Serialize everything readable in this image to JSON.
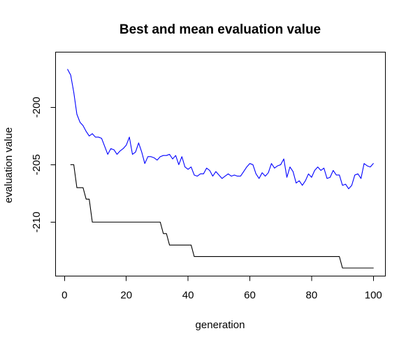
{
  "chart_data": {
    "type": "line",
    "title": "Best and mean evaluation value",
    "xlabel": "generation",
    "ylabel": "evaluation value",
    "xlim": [
      -2.9,
      103.9
    ],
    "ylim": [
      -214.7,
      -195.2
    ],
    "x_ticks": [
      0,
      20,
      40,
      60,
      80,
      100
    ],
    "y_ticks": [
      -200,
      -205,
      -210
    ],
    "grid": false,
    "legend": "none",
    "series": [
      {
        "color": "#0000ff",
        "x": [
          1,
          2,
          3,
          4,
          5,
          6,
          7,
          8,
          9,
          10,
          11,
          12,
          13,
          14,
          15,
          16,
          17,
          18,
          19,
          20,
          21,
          22,
          23,
          24,
          25,
          26,
          27,
          28,
          29,
          30,
          31,
          32,
          33,
          34,
          35,
          36,
          37,
          38,
          39,
          40,
          41,
          42,
          43,
          44,
          45,
          46,
          47,
          48,
          49,
          50,
          51,
          52,
          53,
          54,
          55,
          56,
          57,
          58,
          59,
          60,
          61,
          62,
          63,
          64,
          65,
          66,
          67,
          68,
          69,
          70,
          71,
          72,
          73,
          74,
          75,
          76,
          77,
          78,
          79,
          80,
          81,
          82,
          83,
          84,
          85,
          86,
          87,
          88,
          89,
          90,
          91,
          92,
          93,
          94,
          95,
          96,
          97,
          98,
          99,
          100
        ],
        "values": [
          -196.7,
          -197.2,
          -198.7,
          -200.6,
          -201.3,
          -201.6,
          -202.1,
          -202.5,
          -202.3,
          -202.6,
          -202.6,
          -202.7,
          -203.4,
          -204.1,
          -203.6,
          -203.7,
          -204.1,
          -203.8,
          -203.6,
          -203.3,
          -202.6,
          -204.1,
          -203.9,
          -203.1,
          -203.9,
          -204.9,
          -204.3,
          -204.3,
          -204.4,
          -204.6,
          -204.3,
          -204.2,
          -204.2,
          -204.1,
          -204.5,
          -204.2,
          -205.0,
          -204.3,
          -205.2,
          -205.4,
          -205.2,
          -205.9,
          -206.0,
          -205.8,
          -205.8,
          -205.3,
          -205.5,
          -206.0,
          -205.6,
          -205.9,
          -206.2,
          -206.0,
          -205.8,
          -206.0,
          -205.9,
          -206.0,
          -206.0,
          -205.6,
          -205.2,
          -204.9,
          -205.0,
          -205.8,
          -206.2,
          -205.7,
          -206.0,
          -205.7,
          -204.9,
          -205.3,
          -205.1,
          -205.0,
          -204.5,
          -206.1,
          -205.2,
          -205.6,
          -206.6,
          -206.4,
          -206.8,
          -206.4,
          -205.8,
          -206.1,
          -205.5,
          -205.2,
          -205.5,
          -205.3,
          -206.2,
          -206.1,
          -205.5,
          -205.9,
          -205.9,
          -206.8,
          -206.7,
          -207.1,
          -206.8,
          -205.9,
          -205.8,
          -206.2,
          -204.9,
          -205.1,
          -205.2,
          -204.9
        ]
      },
      {
        "color": "#000000",
        "x": [
          2,
          3,
          4,
          5,
          6,
          7,
          8,
          9,
          10,
          11,
          12,
          13,
          14,
          15,
          16,
          17,
          18,
          19,
          20,
          21,
          22,
          23,
          24,
          25,
          26,
          27,
          28,
          29,
          30,
          31,
          32,
          33,
          34,
          35,
          36,
          37,
          38,
          39,
          40,
          41,
          42,
          43,
          44,
          45,
          46,
          47,
          48,
          49,
          50,
          51,
          52,
          53,
          54,
          55,
          56,
          57,
          58,
          59,
          60,
          61,
          62,
          63,
          64,
          65,
          66,
          67,
          68,
          69,
          70,
          71,
          72,
          73,
          74,
          75,
          76,
          77,
          78,
          79,
          80,
          81,
          82,
          83,
          84,
          85,
          86,
          87,
          88,
          89,
          90,
          91,
          92,
          93,
          94,
          95,
          96,
          97,
          98,
          99,
          100
        ],
        "values": [
          -205,
          -205,
          -207,
          -207,
          -207,
          -208,
          -208,
          -210,
          -210,
          -210,
          -210,
          -210,
          -210,
          -210,
          -210,
          -210,
          -210,
          -210,
          -210,
          -210,
          -210,
          -210,
          -210,
          -210,
          -210,
          -210,
          -210,
          -210,
          -210,
          -210,
          -211,
          -211,
          -212,
          -212,
          -212,
          -212,
          -212,
          -212,
          -212,
          -212,
          -213,
          -213,
          -213,
          -213,
          -213,
          -213,
          -213,
          -213,
          -213,
          -213,
          -213,
          -213,
          -213,
          -213,
          -213,
          -213,
          -213,
          -213,
          -213,
          -213,
          -213,
          -213,
          -213,
          -213,
          -213,
          -213,
          -213,
          -213,
          -213,
          -213,
          -213,
          -213,
          -213,
          -213,
          -213,
          -213,
          -213,
          -213,
          -213,
          -213,
          -213,
          -213,
          -213,
          -213,
          -213,
          -213,
          -213,
          -213,
          -214,
          -214,
          -214,
          -214,
          -214,
          -214,
          -214,
          -214,
          -214,
          -214,
          -214
        ]
      }
    ]
  }
}
